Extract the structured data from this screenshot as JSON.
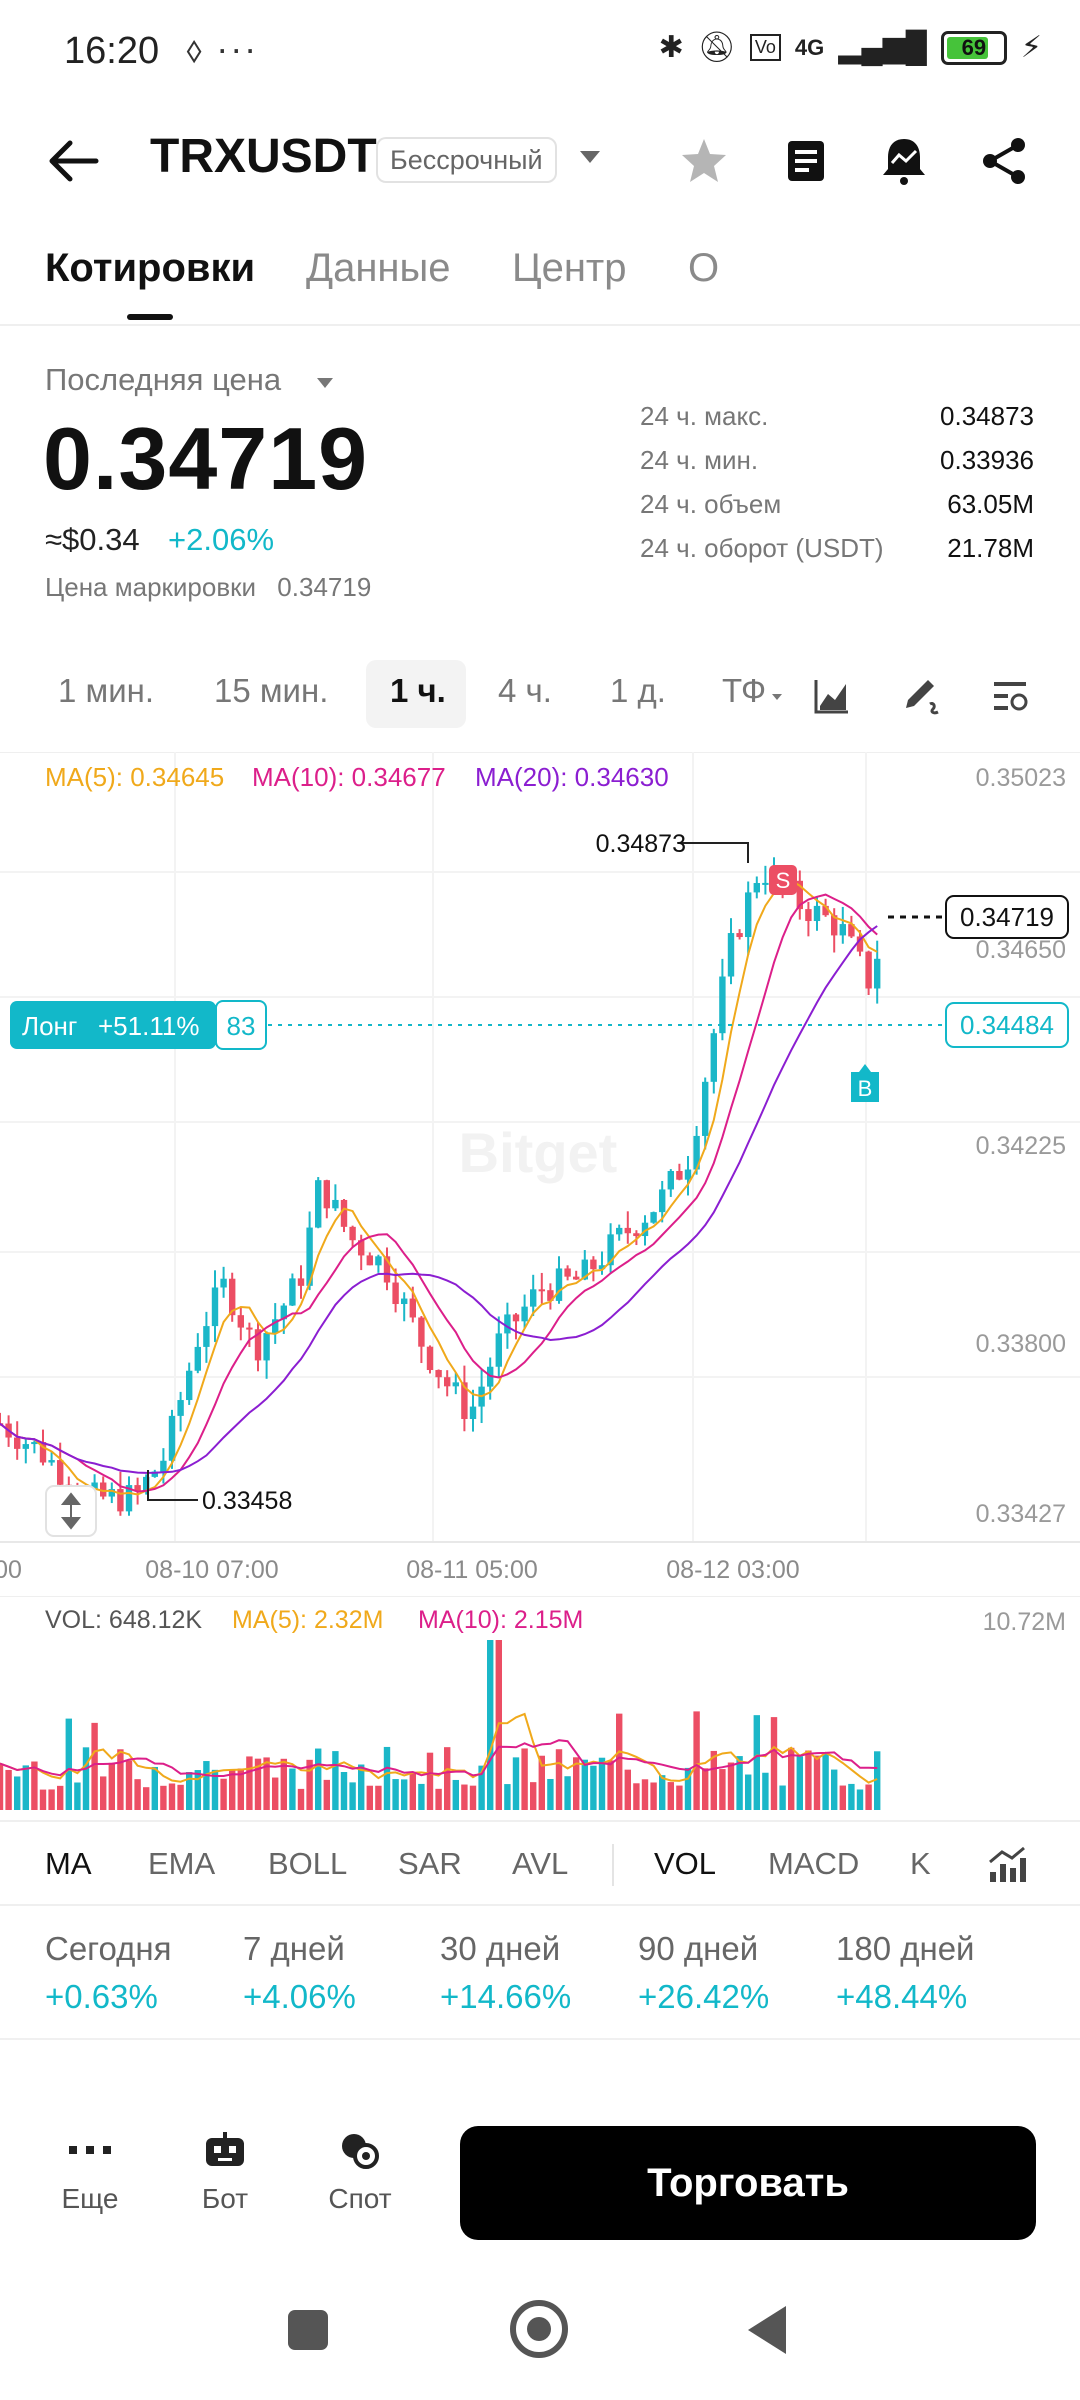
{
  "status_bar": {
    "time": "16:20",
    "extra": "⬨ ···",
    "network": "4G",
    "battery": "69"
  },
  "header": {
    "pair": "TRXUSDT",
    "contract_type": "Бессрочный"
  },
  "tabs": [
    {
      "label": "Котировки"
    },
    {
      "label": "Данные"
    },
    {
      "label": "Центр"
    },
    {
      "label": "О"
    }
  ],
  "price": {
    "last_price_label": "Последняя цена",
    "last_price": "0.34719",
    "usd_price": "≈$0.34",
    "change": "+2.06%",
    "mark_label": "Цена маркировки",
    "mark_price": "0.34719"
  },
  "stats": [
    {
      "label": "24 ч. макс.",
      "value": "0.34873"
    },
    {
      "label": "24 ч. мин.",
      "value": "0.33936"
    },
    {
      "label": "24 ч. объем",
      "value": "63.05M"
    },
    {
      "label": "24 ч. оборот (USDT)",
      "value": "21.78M"
    }
  ],
  "intervals": [
    {
      "label": "1 мин."
    },
    {
      "label": "15 мин."
    },
    {
      "label": "1 ч."
    },
    {
      "label": "4 ч."
    },
    {
      "label": "1 д."
    },
    {
      "label": "ТФ"
    }
  ],
  "chart": {
    "ma5_label": "MA(5): 0.34645",
    "ma10_label": "MA(10): 0.34677",
    "ma20_label": "MA(20): 0.34630",
    "y_ticks": [
      "0.35023",
      "0.34650",
      "0.34225",
      "0.33800",
      "0.33427"
    ],
    "x_ticks": [
      "00",
      "08-10 07:00",
      "08-11 05:00",
      "08-12 03:00"
    ],
    "high_label": "0.34873",
    "low_label": "0.33458",
    "current_price_tag": "0.34719",
    "position_side": "Лонг",
    "position_pnl": "+51.11%",
    "position_qty": "83",
    "position_price": "0.34484",
    "sell_marker": "S",
    "buy_marker": "B",
    "colors": {
      "up": "#1bb7c8",
      "down": "#ec4e64",
      "ma5": "#f0a91b",
      "ma10": "#dc1f8a",
      "ma20": "#8b1ed1"
    }
  },
  "volume": {
    "vol_label": "VOL: 648.12K",
    "ma5_label": "MA(5): 2.32M",
    "ma10_label": "MA(10): 2.15M",
    "max_tick": "10.72M"
  },
  "indicators": [
    {
      "label": "MA"
    },
    {
      "label": "EMA"
    },
    {
      "label": "BOLL"
    },
    {
      "label": "SAR"
    },
    {
      "label": "AVL"
    },
    {
      "label": "VOL"
    },
    {
      "label": "MACD"
    },
    {
      "label": "K"
    }
  ],
  "performance": [
    {
      "label": "Сегодня",
      "value": "+0.63%"
    },
    {
      "label": "7 дней",
      "value": "+4.06%"
    },
    {
      "label": "30 дней",
      "value": "+14.66%"
    },
    {
      "label": "90 дней",
      "value": "+26.42%"
    },
    {
      "label": "180 дней",
      "value": "+48.44%"
    }
  ],
  "actions": [
    {
      "label": "Еще"
    },
    {
      "label": "Бот"
    },
    {
      "label": "Спот"
    }
  ],
  "trade_button": "Торговать"
}
